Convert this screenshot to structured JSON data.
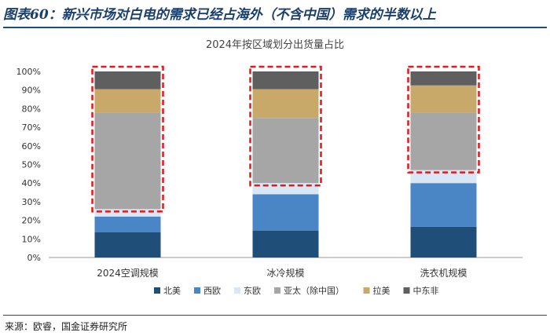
{
  "header": {
    "title": "图表60：新兴市场对白电的需求已经占海外（不含中国）需求的半数以上"
  },
  "source": "来源：欧睿，国金证券研究所",
  "chart_data": {
    "type": "bar",
    "stacked": true,
    "title": "2024年按区域划分出货量占比",
    "categories": [
      "2024空调规模",
      "冰冷规模",
      "洗衣机规模"
    ],
    "ylim": [
      0,
      100
    ],
    "yticks": [
      "0%",
      "10%",
      "20%",
      "30%",
      "40%",
      "50%",
      "60%",
      "70%",
      "80%",
      "90%",
      "100%"
    ],
    "grid": false,
    "legend_position": "bottom",
    "series": [
      {
        "name": "北美",
        "color": "#1f4e79",
        "values": [
          13.5,
          14.5,
          16.5
        ]
      },
      {
        "name": "西欧",
        "color": "#4a86c5",
        "values": [
          8.5,
          19.5,
          23.5
        ]
      },
      {
        "name": "东欧",
        "color": "#d9e6f3",
        "values": [
          4,
          6,
          7
        ]
      },
      {
        "name": "亚太（除中国）",
        "color": "#a6a6a6",
        "values": [
          52,
          35,
          31
        ]
      },
      {
        "name": "拉美",
        "color": "#c9a96a",
        "values": [
          12.5,
          15.5,
          14.5
        ]
      },
      {
        "name": "中东非",
        "color": "#5f5f5f",
        "values": [
          9.5,
          9.5,
          7.5
        ]
      }
    ],
    "highlight_boxes": [
      {
        "category": "2024空调规模",
        "from": 26,
        "to": 100
      },
      {
        "category": "冰冷规模",
        "from": 40,
        "to": 100
      },
      {
        "category": "洗衣机规模",
        "from": 47,
        "to": 100
      }
    ],
    "highlight_color": "#e0191e"
  }
}
